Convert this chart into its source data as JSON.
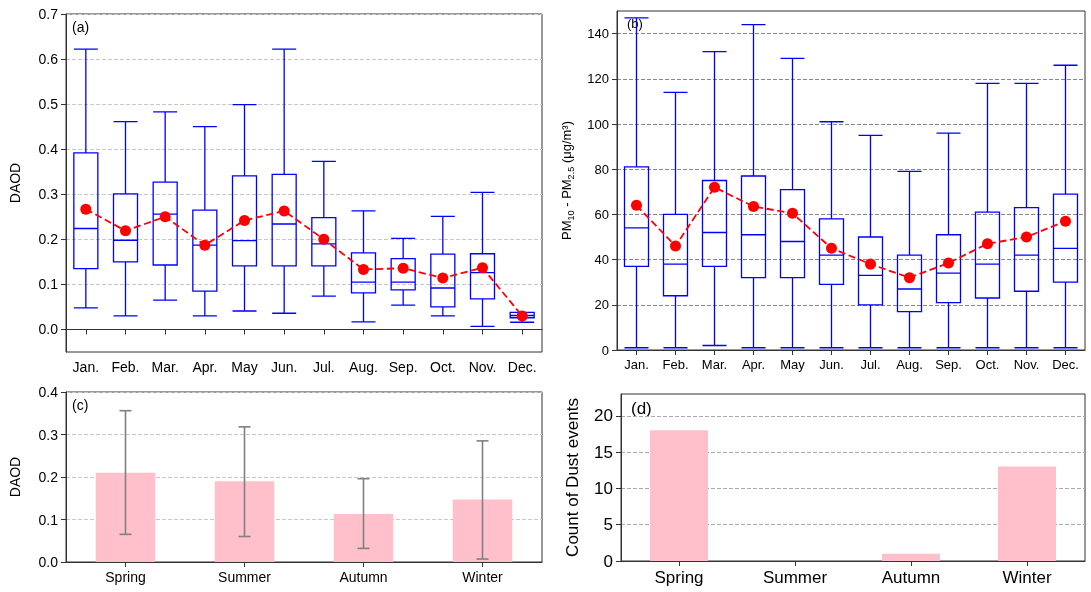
{
  "chart_data": [
    {
      "type": "box",
      "ylabel": "DAOD",
      "annotations": [
        "(a)"
      ],
      "categories": [
        "Jan.",
        "Feb.",
        "Mar.",
        "Apr.",
        "May",
        "Jun.",
        "Jul.",
        "Aug.",
        "Sep.",
        "Oct.",
        "Nov.",
        "Dec."
      ],
      "ylim": [
        -0.05,
        0.7
      ],
      "yticks": [
        {
          "value": 0,
          "label": "0.0"
        },
        {
          "value": 0.1,
          "label": "0.1"
        },
        {
          "value": 0.2,
          "label": "0.2"
        },
        {
          "value": 0.3,
          "label": "0.3"
        },
        {
          "value": 0.4,
          "label": "0.4"
        },
        {
          "value": 0.5,
          "label": "0.5"
        },
        {
          "value": 0.6,
          "label": "0.6"
        },
        {
          "value": 0.7,
          "label": "0.7"
        }
      ],
      "grid": "y",
      "series": [
        {
          "type": "box",
          "color": "#0000ff",
          "boxes": [
            {
              "low": 0.048,
              "q1": 0.135,
              "median": 0.224,
              "q3": 0.392,
              "high": 0.622
            },
            {
              "low": 0.03,
              "q1": 0.15,
              "median": 0.198,
              "q3": 0.301,
              "high": 0.461
            },
            {
              "low": 0.065,
              "q1": 0.143,
              "median": 0.256,
              "q3": 0.327,
              "high": 0.483
            },
            {
              "low": 0.03,
              "q1": 0.085,
              "median": 0.187,
              "q3": 0.265,
              "high": 0.45
            },
            {
              "low": 0.041,
              "q1": 0.141,
              "median": 0.197,
              "q3": 0.341,
              "high": 0.499
            },
            {
              "low": 0.036,
              "q1": 0.141,
              "median": 0.234,
              "q3": 0.344,
              "high": 0.622
            },
            {
              "low": 0.074,
              "q1": 0.141,
              "median": 0.19,
              "q3": 0.248,
              "high": 0.373
            },
            {
              "low": 0.017,
              "q1": 0.081,
              "median": 0.105,
              "q3": 0.17,
              "high": 0.263
            },
            {
              "low": 0.054,
              "q1": 0.088,
              "median": 0.105,
              "q3": 0.157,
              "high": 0.202
            },
            {
              "low": 0.03,
              "q1": 0.05,
              "median": 0.092,
              "q3": 0.167,
              "high": 0.251
            },
            {
              "low": 0.007,
              "q1": 0.068,
              "median": 0.126,
              "q3": 0.168,
              "high": 0.304
            },
            {
              "low": 0.016,
              "q1": 0.026,
              "median": 0.031,
              "q3": 0.038,
              "high": 0.038
            }
          ]
        },
        {
          "type": "line",
          "color": "#ff0000",
          "line_style": "dashed",
          "marker": "circle",
          "values": [
            0.267,
            0.219,
            0.25,
            0.187,
            0.242,
            0.263,
            0.2,
            0.133,
            0.136,
            0.114,
            0.137,
            0.03
          ]
        }
      ]
    },
    {
      "type": "box",
      "ylabel": "PM$_{10}$ - PM$_{2.5}$ (μg/m³)",
      "annotations": [
        "(b)"
      ],
      "categories": [
        "Jan.",
        "Feb.",
        "Mar.",
        "Apr.",
        "May",
        "Jun.",
        "Jul.",
        "Aug.",
        "Sep.",
        "Oct.",
        "Nov.",
        "Dec."
      ],
      "ylim": [
        0,
        150
      ],
      "yticks": [
        0,
        20,
        40,
        60,
        80,
        100,
        120,
        140
      ],
      "grid": "y",
      "series": [
        {
          "type": "box",
          "color": "#0000ff",
          "boxes": [
            {
              "low": 1,
              "q1": 37,
              "median": 54,
              "q3": 81,
              "high": 147
            },
            {
              "low": 1,
              "q1": 24,
              "median": 38,
              "q3": 60,
              "high": 114
            },
            {
              "low": 2,
              "q1": 37,
              "median": 52,
              "q3": 75,
              "high": 132
            },
            {
              "low": 1,
              "q1": 32,
              "median": 51,
              "q3": 77,
              "high": 144
            },
            {
              "low": 1,
              "q1": 32,
              "median": 48,
              "q3": 71,
              "high": 129
            },
            {
              "low": 1,
              "q1": 29,
              "median": 42,
              "q3": 58,
              "high": 101
            },
            {
              "low": 1,
              "q1": 20,
              "median": 33,
              "q3": 50,
              "high": 95
            },
            {
              "low": 1,
              "q1": 17,
              "median": 27,
              "q3": 42,
              "high": 79
            },
            {
              "low": 1,
              "q1": 21,
              "median": 34,
              "q3": 51,
              "high": 96
            },
            {
              "low": 1,
              "q1": 23,
              "median": 38,
              "q3": 61,
              "high": 118
            },
            {
              "low": 1,
              "q1": 26,
              "median": 42,
              "q3": 63,
              "high": 118
            },
            {
              "low": 1,
              "q1": 30,
              "median": 45,
              "q3": 69,
              "high": 126
            }
          ]
        },
        {
          "type": "line",
          "color": "#ff0000",
          "line_style": "dashed",
          "marker": "circle",
          "values": [
            64,
            46,
            72,
            63.5,
            60.5,
            45,
            38,
            32,
            38.5,
            47,
            50,
            57
          ]
        }
      ]
    },
    {
      "type": "bar",
      "ylabel": "DAOD",
      "annotations": [
        "(c)"
      ],
      "categories": [
        "Spring",
        "Summer",
        "Autumn",
        "Winter"
      ],
      "values": [
        0.21,
        0.19,
        0.113,
        0.147
      ],
      "color": "#ffc0cb",
      "errors": [
        [
          0.065,
          0.356
        ],
        [
          0.06,
          0.318
        ],
        [
          0.032,
          0.196
        ],
        [
          0.007,
          0.285
        ]
      ],
      "ylim": [
        0,
        0.4
      ],
      "yticks": [
        {
          "value": 0,
          "label": "0.0"
        },
        {
          "value": 0.1,
          "label": "0.1"
        },
        {
          "value": 0.2,
          "label": "0.2"
        },
        {
          "value": 0.3,
          "label": "0.3"
        },
        {
          "value": 0.4,
          "label": "0.4"
        }
      ],
      "grid": "y"
    },
    {
      "type": "bar",
      "ylabel": "Count of Dust events",
      "annotations": [
        "(d)"
      ],
      "categories": [
        "Spring",
        "Summer",
        "Autumn",
        "Winter"
      ],
      "values": [
        18,
        0,
        1,
        13
      ],
      "color": "#ffc0cb",
      "ylim": [
        0,
        23
      ],
      "yticks": [
        0,
        5,
        10,
        15,
        20
      ],
      "grid": "y"
    }
  ]
}
